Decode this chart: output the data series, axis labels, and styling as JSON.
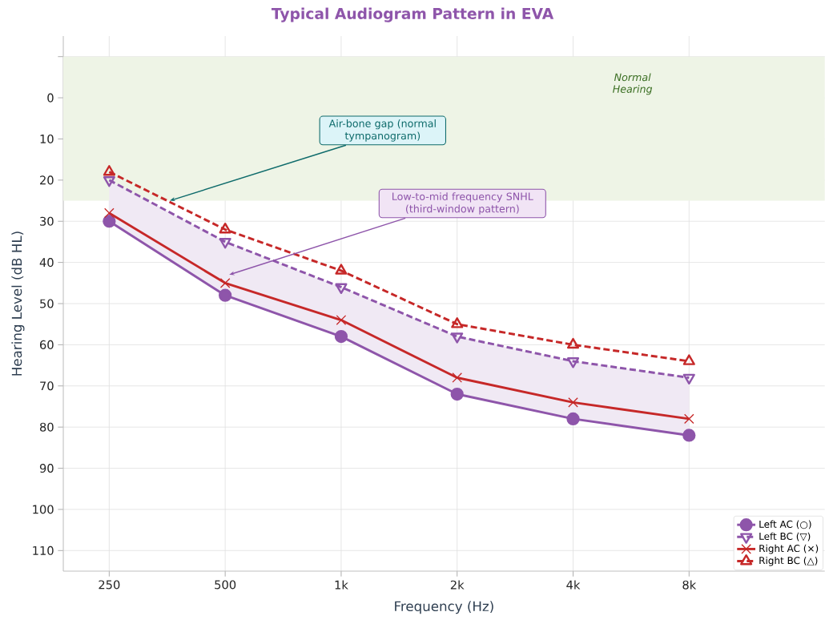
{
  "chart_data": {
    "type": "line",
    "title": "Typical Audiogram Pattern in EVA",
    "xlabel": "Frequency (Hz)",
    "ylabel": "Hearing Level (dB HL)",
    "x": [
      250,
      500,
      1000,
      2000,
      4000,
      8000
    ],
    "log": "x",
    "xlim": [
      190,
      18000
    ],
    "xticks": [
      250,
      500,
      {
        "value": 1000,
        "label": "1k"
      },
      {
        "value": 2000,
        "label": "2k"
      },
      {
        "value": 4000,
        "label": "4k"
      },
      {
        "value": 8000,
        "label": "8k"
      }
    ],
    "ylim": [
      115,
      -15
    ],
    "yticks": [
      {
        "value": -10,
        "label": null
      },
      0,
      10,
      20,
      30,
      40,
      50,
      60,
      70,
      80,
      90,
      100,
      110
    ],
    "grid": true,
    "legend": "bottom right",
    "series": [
      {
        "name": "Left AC  (○)",
        "color": "#8e55aa",
        "values": [
          30,
          48,
          58,
          72,
          78,
          82
        ],
        "marker": "circle",
        "line_style": "solid",
        "lower": [
          20,
          35,
          46,
          58,
          64,
          68
        ],
        "upper": [
          30,
          48,
          58,
          72,
          78,
          82
        ]
      },
      {
        "name": "Left BC  (▽)",
        "color": "#8e55aa",
        "values": [
          20,
          35,
          46,
          58,
          64,
          68
        ],
        "marker": "triangle-down",
        "line_style": "dashed"
      },
      {
        "name": "Right AC  (×)",
        "color": "#c62828",
        "values": [
          28,
          45,
          54,
          68,
          74,
          78
        ],
        "marker": "cross",
        "line_style": "solid"
      },
      {
        "name": "Right BC  (△)",
        "color": "#c62828",
        "values": [
          18,
          32,
          42,
          55,
          60,
          64
        ],
        "marker": "triangle",
        "line_style": "dashed"
      }
    ],
    "bands": [
      {
        "axis": "y",
        "from": -10,
        "to": 25,
        "label": "Normal Hearing",
        "color": "#eef4e6"
      }
    ],
    "annotations": [
      {
        "text": "Air-bone gap (normal tympanogram)",
        "x": 359,
        "y": 25
      },
      {
        "text": "Low-to-mid frequency SNHL (third-window pattern)",
        "x": 512,
        "y": 43
      }
    ]
  }
}
